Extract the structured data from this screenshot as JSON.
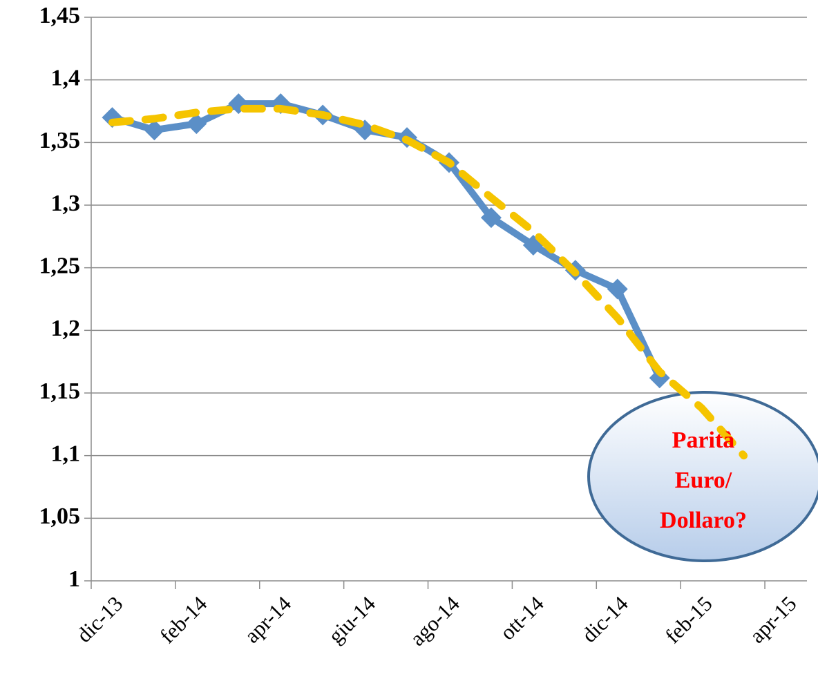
{
  "chart_data": {
    "type": "line",
    "categories": [
      "dic-13",
      null,
      "feb-14",
      null,
      "apr-14",
      null,
      "giu-14",
      null,
      "ago-14",
      null,
      "ott-14",
      null,
      "dic-14",
      null,
      "feb-15",
      null,
      "apr-15"
    ],
    "series": [
      {
        "color": "#5b8fc7",
        "style": "solid",
        "marker": "diamond",
        "values": [
          1.37,
          1.36,
          1.365,
          1.381,
          1.381,
          1.372,
          1.36,
          1.354,
          1.334,
          1.29,
          1.268,
          1.248,
          1.233,
          1.162,
          null,
          null,
          null
        ]
      },
      {
        "color": "#f5c400",
        "style": "dashed",
        "values": [
          1.366,
          1.369,
          1.374,
          1.377,
          1.377,
          1.372,
          1.364,
          1.352,
          1.334,
          1.306,
          1.279,
          1.246,
          1.21,
          1.167,
          1.138,
          1.1,
          null
        ]
      }
    ],
    "ylim": [
      1,
      1.45
    ],
    "yticks": [
      1,
      {
        "value": 1.05,
        "label": "1,05"
      },
      {
        "value": 1.1,
        "label": "1,1"
      },
      {
        "value": 1.15,
        "label": "1,15"
      },
      {
        "value": 1.2,
        "label": "1,2"
      },
      {
        "value": 1.25,
        "label": "1,25"
      },
      {
        "value": 1.3,
        "label": "1,3"
      },
      {
        "value": 1.35,
        "label": "1,35"
      },
      {
        "value": 1.4,
        "label": "1,4"
      },
      {
        "value": 1.45,
        "label": "1,45"
      }
    ],
    "grid": true,
    "annotation": [
      "Parità",
      "Euro/",
      "Dollaro?"
    ]
  }
}
